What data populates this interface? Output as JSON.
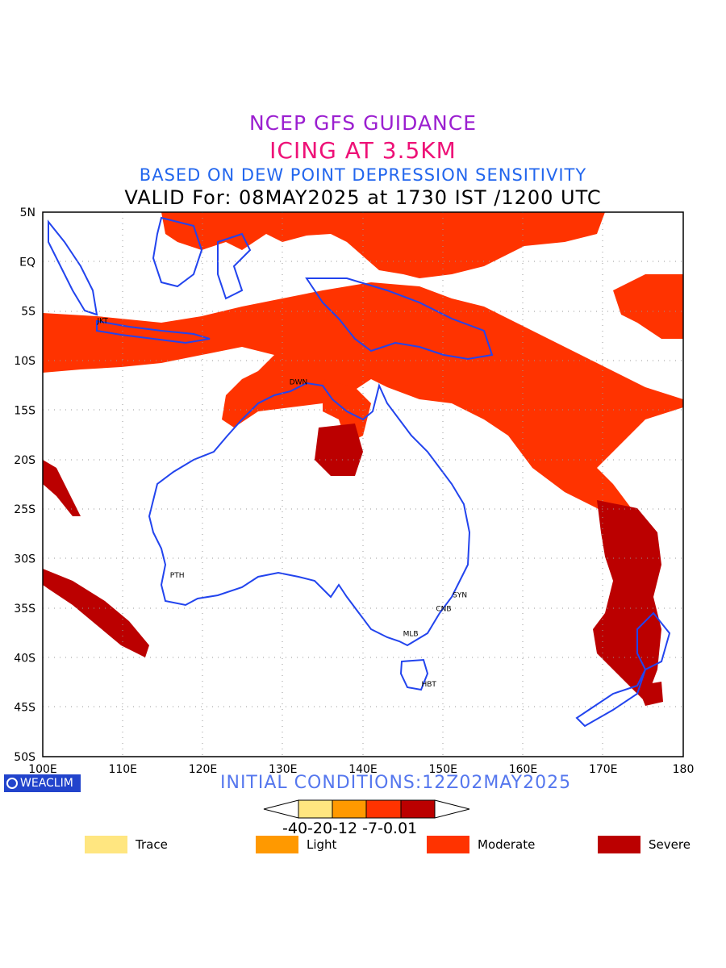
{
  "header": {
    "line1": "NCEP GFS GUIDANCE",
    "line2": "ICING AT 3.5KM",
    "line3": "BASED ON DEW POINT DEPRESSION SENSITIVITY",
    "line4": "VALID For: 08MAY2025 at 1730 IST /1200 UTC"
  },
  "map": {
    "lon_labels": [
      "100E",
      "110E",
      "120E",
      "130E",
      "140E",
      "150E",
      "160E",
      "170E",
      "180"
    ],
    "lat_labels": [
      "5N",
      "EQ",
      "5S",
      "10S",
      "15S",
      "20S",
      "25S",
      "30S",
      "35S",
      "40S",
      "45S",
      "50S"
    ],
    "cities": [
      {
        "name": "JKT",
        "lon": 106.8,
        "lat": -6.2
      },
      {
        "name": "DWN",
        "lon": 130.8,
        "lat": -12.4
      },
      {
        "name": "PTH",
        "lon": 115.9,
        "lat": -31.9
      },
      {
        "name": "SYN",
        "lon": 151.2,
        "lat": -33.9
      },
      {
        "name": "CNB",
        "lon": 149.1,
        "lat": -35.3
      },
      {
        "name": "MLB",
        "lon": 145.0,
        "lat": -37.8
      },
      {
        "name": "HBT",
        "lon": 147.3,
        "lat": -42.9
      }
    ]
  },
  "footer": {
    "logo_text": "WEACLIM",
    "initial_conditions": "INITIAL CONDITIONS:12Z02MAY2025",
    "colorbar_labels": "-40-20-12 -7-0.01"
  },
  "legend": [
    {
      "label": "Trace",
      "color": "#ffe680"
    },
    {
      "label": "Light",
      "color": "#ff9900"
    },
    {
      "label": "Moderate",
      "color": "#ff3300"
    },
    {
      "label": "Severe",
      "color": "#bb0000"
    }
  ],
  "colors": {
    "coast": "#2244ee",
    "moderate": "#ff3300",
    "severe": "#bb0000",
    "grid": "#999999"
  }
}
